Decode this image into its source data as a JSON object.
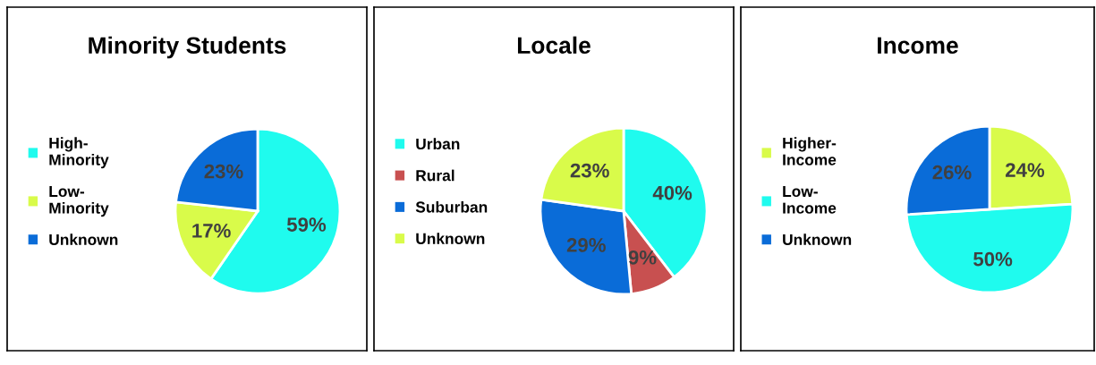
{
  "chart_data": [
    {
      "type": "pie",
      "title": "Minority Students",
      "categories": [
        "High-Minority",
        "Low-Minority",
        "Unknown"
      ],
      "values": [
        59,
        17,
        23
      ],
      "value_labels": [
        "59%",
        "17%",
        "23%"
      ],
      "colors": [
        "#1ffbee",
        "#d9fb4a",
        "#0a6cd8"
      ],
      "legend": "left"
    },
    {
      "type": "pie",
      "title": "Locale",
      "categories": [
        "Urban",
        "Rural",
        "Suburban",
        "Unknown"
      ],
      "values": [
        40,
        9,
        29,
        23
      ],
      "value_labels": [
        "40%",
        "9%",
        "29%",
        "23%"
      ],
      "colors": [
        "#1ffbee",
        "#c85050",
        "#0a6cd8",
        "#d9fb4a"
      ],
      "legend": "left"
    },
    {
      "type": "pie",
      "title": "Income",
      "categories": [
        "Higher-Income",
        "Low-Income",
        "Unknown"
      ],
      "values": [
        24,
        50,
        26
      ],
      "value_labels": [
        "24%",
        "50%",
        "26%"
      ],
      "colors": [
        "#d9fb4a",
        "#1ffbee",
        "#0a6cd8"
      ],
      "legend": "left"
    }
  ]
}
